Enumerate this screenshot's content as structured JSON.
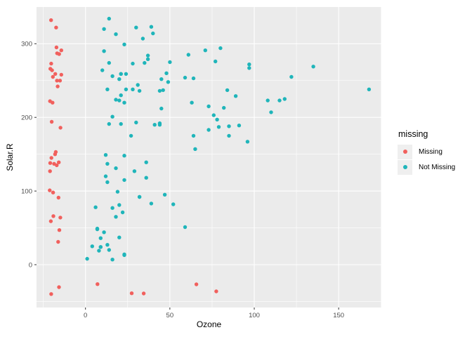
{
  "figure": {
    "background": "#FFFFFF",
    "panel_background": "#EBEBEB",
    "grid_color": "#FFFFFF",
    "tick_mark_color": "#333333",
    "tick_label_color": "#4D4D4D"
  },
  "chart_data": {
    "type": "scatter",
    "xlabel": "Ozone",
    "ylabel": "Solar.R",
    "x_ticks": [
      0,
      50,
      100,
      150
    ],
    "y_ticks": [
      0,
      100,
      200,
      300
    ],
    "x_minor": [
      -25,
      25,
      75,
      125,
      175
    ],
    "y_minor": [
      -50,
      50,
      150,
      250
    ],
    "xlim": [
      -29,
      175.3
    ],
    "ylim": [
      -58.1,
      350.3
    ],
    "grid": true,
    "point_radius": 2.7,
    "legend": {
      "title": "missing",
      "position": "right",
      "items": [
        {
          "label": "Missing",
          "color": "#F1605D"
        },
        {
          "label": "Not Missing",
          "color": "#1FB5BA"
        }
      ]
    },
    "series": [
      {
        "name": "Missing",
        "color": "#F1605D",
        "points": [
          [
            -20.4,
            332
          ],
          [
            -17.4,
            322
          ],
          [
            -17.2,
            295
          ],
          [
            -14.3,
            291
          ],
          [
            -16.8,
            287
          ],
          [
            -15.6,
            286
          ],
          [
            -20.3,
            273
          ],
          [
            -20.8,
            266
          ],
          [
            -19.8,
            264
          ],
          [
            -17.9,
            259
          ],
          [
            -14.3,
            258
          ],
          [
            -19.3,
            255
          ],
          [
            -16.9,
            250
          ],
          [
            -15.1,
            250
          ],
          [
            -16.5,
            242
          ],
          [
            -21,
            222
          ],
          [
            -19.5,
            220
          ],
          [
            -20,
            194
          ],
          [
            -14.8,
            186
          ],
          [
            -17.6,
            153
          ],
          [
            -18,
            150
          ],
          [
            -20.2,
            145
          ],
          [
            -15.8,
            139
          ],
          [
            -20.9,
            138
          ],
          [
            -18.6,
            137
          ],
          [
            -17,
            135
          ],
          [
            -21,
            127
          ],
          [
            -21.2,
            101
          ],
          [
            -19.2,
            98
          ],
          [
            -16,
            91
          ],
          [
            -19,
            66
          ],
          [
            -14.9,
            64
          ],
          [
            -20.5,
            59
          ],
          [
            -15.5,
            47
          ],
          [
            -16.2,
            31
          ],
          [
            -20.3,
            -39.8
          ],
          [
            -15.7,
            -30.5
          ],
          [
            7.1,
            -26.4
          ],
          [
            27.4,
            -38.8
          ],
          [
            34.5,
            -39.1
          ],
          [
            65.7,
            -26.7
          ],
          [
            77.5,
            -36.2
          ]
        ]
      },
      {
        "name": "Not Missing",
        "color": "#1FB5BA",
        "points": [
          [
            41,
            190
          ],
          [
            36,
            118
          ],
          [
            12,
            149
          ],
          [
            18,
            313
          ],
          [
            23,
            299
          ],
          [
            19,
            99
          ],
          [
            8,
            19
          ],
          [
            16,
            256
          ],
          [
            11,
            290
          ],
          [
            14,
            274
          ],
          [
            18,
            65
          ],
          [
            14,
            334
          ],
          [
            34,
            307
          ],
          [
            6,
            78
          ],
          [
            30,
            322
          ],
          [
            11,
            44
          ],
          [
            1,
            8
          ],
          [
            11,
            320
          ],
          [
            4,
            25
          ],
          [
            32,
            92
          ],
          [
            23,
            13
          ],
          [
            45,
            252
          ],
          [
            115,
            223
          ],
          [
            37,
            279
          ],
          [
            29,
            127
          ],
          [
            71,
            291
          ],
          [
            39,
            323
          ],
          [
            23,
            148
          ],
          [
            21,
            191
          ],
          [
            37,
            284
          ],
          [
            20,
            37
          ],
          [
            12,
            120
          ],
          [
            13,
            137
          ],
          [
            135,
            269
          ],
          [
            49,
            248
          ],
          [
            32,
            236
          ],
          [
            64,
            175
          ],
          [
            40,
            314
          ],
          [
            77,
            276
          ],
          [
            97,
            267
          ],
          [
            97,
            272
          ],
          [
            85,
            175
          ],
          [
            10,
            264
          ],
          [
            27,
            175
          ],
          [
            7,
            48
          ],
          [
            48,
            260
          ],
          [
            35,
            274
          ],
          [
            61,
            285
          ],
          [
            79,
            187
          ],
          [
            63,
            220
          ],
          [
            16,
            7
          ],
          [
            80,
            294
          ],
          [
            108,
            223
          ],
          [
            20,
            81
          ],
          [
            52,
            82
          ],
          [
            82,
            213
          ],
          [
            50,
            275
          ],
          [
            64,
            253
          ],
          [
            59,
            254
          ],
          [
            39,
            83
          ],
          [
            9,
            24
          ],
          [
            16,
            77
          ],
          [
            122,
            255
          ],
          [
            89,
            229
          ],
          [
            110,
            207
          ],
          [
            44,
            192
          ],
          [
            28,
            273
          ],
          [
            65,
            157
          ],
          [
            22,
            71
          ],
          [
            59,
            51
          ],
          [
            23,
            115
          ],
          [
            31,
            244
          ],
          [
            44,
            190
          ],
          [
            21,
            259
          ],
          [
            9,
            36
          ],
          [
            45,
            212
          ],
          [
            168,
            238
          ],
          [
            73,
            215
          ],
          [
            76,
            203
          ],
          [
            118,
            225
          ],
          [
            84,
            237
          ],
          [
            85,
            188
          ],
          [
            96,
            167
          ],
          [
            78,
            197
          ],
          [
            73,
            183
          ],
          [
            91,
            189
          ],
          [
            47,
            95
          ],
          [
            32,
            92
          ],
          [
            20,
            252
          ],
          [
            23,
            220
          ],
          [
            21,
            230
          ],
          [
            24,
            259
          ],
          [
            44,
            236
          ],
          [
            21,
            259
          ],
          [
            28,
            238
          ],
          [
            9,
            24
          ],
          [
            13,
            112
          ],
          [
            46,
            237
          ],
          [
            18,
            224
          ],
          [
            13,
            27
          ],
          [
            24,
            238
          ],
          [
            16,
            201
          ],
          [
            13,
            238
          ],
          [
            23,
            14
          ],
          [
            36,
            139
          ],
          [
            7,
            49
          ],
          [
            14,
            20
          ],
          [
            30,
            193
          ],
          [
            14,
            191
          ],
          [
            18,
            131
          ],
          [
            20,
            223
          ]
        ]
      }
    ]
  }
}
